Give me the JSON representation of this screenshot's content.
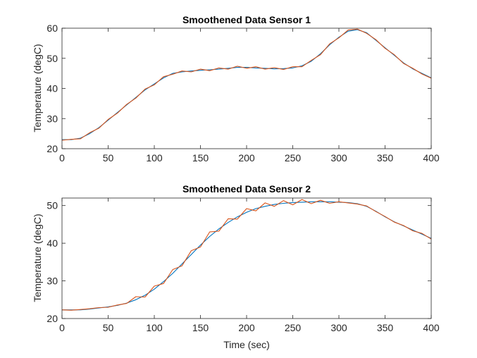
{
  "chart_data": [
    {
      "type": "line",
      "title": "Smoothened Data Sensor 1",
      "xlabel": "",
      "ylabel": "Temperature (degC)",
      "xlim": [
        0,
        400
      ],
      "ylim": [
        20,
        60
      ],
      "xticks": [
        0,
        50,
        100,
        150,
        200,
        250,
        300,
        350,
        400
      ],
      "yticks": [
        20,
        30,
        40,
        50,
        60
      ],
      "grid": false,
      "legend": "none",
      "series": [
        {
          "color": "#0072BD",
          "x": [
            0,
            10,
            20,
            30,
            40,
            50,
            60,
            70,
            80,
            90,
            100,
            110,
            120,
            130,
            140,
            150,
            160,
            170,
            180,
            190,
            200,
            210,
            220,
            230,
            240,
            250,
            260,
            270,
            280,
            290,
            300,
            310,
            320,
            330,
            340,
            350,
            360,
            370,
            380,
            390,
            400
          ],
          "y": [
            23,
            23,
            23.5,
            25,
            27,
            29.5,
            32,
            34.5,
            37,
            39.5,
            41.5,
            43.5,
            45,
            45.5,
            45.8,
            46,
            46.2,
            46.4,
            46.7,
            47,
            47,
            46.8,
            46.7,
            46.5,
            46.6,
            46.8,
            47.5,
            49,
            51.5,
            54.5,
            57,
            59,
            59.5,
            58.5,
            56,
            53.5,
            51,
            48.5,
            46.5,
            45,
            43.5
          ]
        },
        {
          "color": "#D95319",
          "x": [
            0,
            10,
            20,
            30,
            40,
            50,
            60,
            70,
            80,
            90,
            100,
            110,
            120,
            130,
            140,
            150,
            160,
            170,
            180,
            190,
            200,
            210,
            220,
            230,
            240,
            250,
            260,
            270,
            280,
            290,
            300,
            310,
            320,
            330,
            340,
            350,
            360,
            370,
            380,
            390,
            400
          ],
          "y": [
            22.8,
            23.1,
            23.3,
            25.3,
            26.8,
            29.7,
            31.8,
            34.7,
            36.8,
            39.8,
            41.2,
            43.9,
            44.7,
            45.8,
            45.5,
            46.4,
            45.9,
            46.8,
            46.4,
            47.4,
            46.7,
            47.2,
            46.4,
            46.9,
            46.3,
            47.2,
            47.2,
            49.3,
            51.2,
            54.8,
            56.8,
            59.4,
            59.7,
            58.3,
            56.2,
            53.3,
            51.2,
            48.3,
            46.7,
            44.8,
            43.4
          ]
        }
      ]
    },
    {
      "type": "line",
      "title": "Smoothened Data Sensor 2",
      "xlabel": "Time (sec)",
      "ylabel": "Temperature (degC)",
      "xlim": [
        0,
        400
      ],
      "ylim": [
        20,
        52
      ],
      "xticks": [
        0,
        50,
        100,
        150,
        200,
        250,
        300,
        350,
        400
      ],
      "yticks": [
        20,
        30,
        40,
        50
      ],
      "grid": false,
      "legend": "none",
      "series": [
        {
          "color": "#0072BD",
          "x": [
            0,
            10,
            20,
            30,
            40,
            50,
            60,
            70,
            80,
            90,
            100,
            110,
            120,
            130,
            140,
            150,
            160,
            170,
            180,
            190,
            200,
            210,
            220,
            230,
            240,
            250,
            260,
            270,
            280,
            290,
            300,
            310,
            320,
            330,
            340,
            350,
            360,
            370,
            380,
            390,
            400
          ],
          "y": [
            22.3,
            22.3,
            22.3,
            22.5,
            22.8,
            23.1,
            23.5,
            24.1,
            25,
            26.2,
            27.8,
            29.8,
            32,
            34.5,
            37,
            39.5,
            41.8,
            43.8,
            45.5,
            47,
            48.2,
            49.2,
            49.8,
            50.3,
            50.6,
            50.8,
            50.9,
            51,
            51,
            51,
            50.9,
            50.8,
            50.5,
            49.8,
            48.5,
            47,
            45.7,
            44.6,
            43.5,
            42.4,
            41.3
          ]
        },
        {
          "color": "#D95319",
          "x": [
            0,
            10,
            20,
            30,
            40,
            50,
            60,
            70,
            80,
            90,
            100,
            110,
            120,
            130,
            140,
            150,
            160,
            170,
            180,
            190,
            200,
            210,
            220,
            230,
            240,
            250,
            260,
            270,
            280,
            290,
            300,
            310,
            320,
            330,
            340,
            350,
            360,
            370,
            380,
            390,
            400
          ],
          "y": [
            22.3,
            22.2,
            22.4,
            22.6,
            22.9,
            23,
            23.6,
            24,
            25.8,
            25.7,
            28.6,
            29.3,
            33,
            34,
            38,
            39,
            43,
            43.2,
            46.5,
            46.4,
            49.2,
            48.6,
            50.7,
            49.8,
            51.3,
            50.2,
            51.6,
            50.5,
            51.4,
            50.6,
            51,
            50.7,
            50.4,
            49.9,
            48.4,
            47.1,
            45.6,
            44.7,
            43.3,
            42.6,
            41.1
          ]
        }
      ]
    }
  ]
}
